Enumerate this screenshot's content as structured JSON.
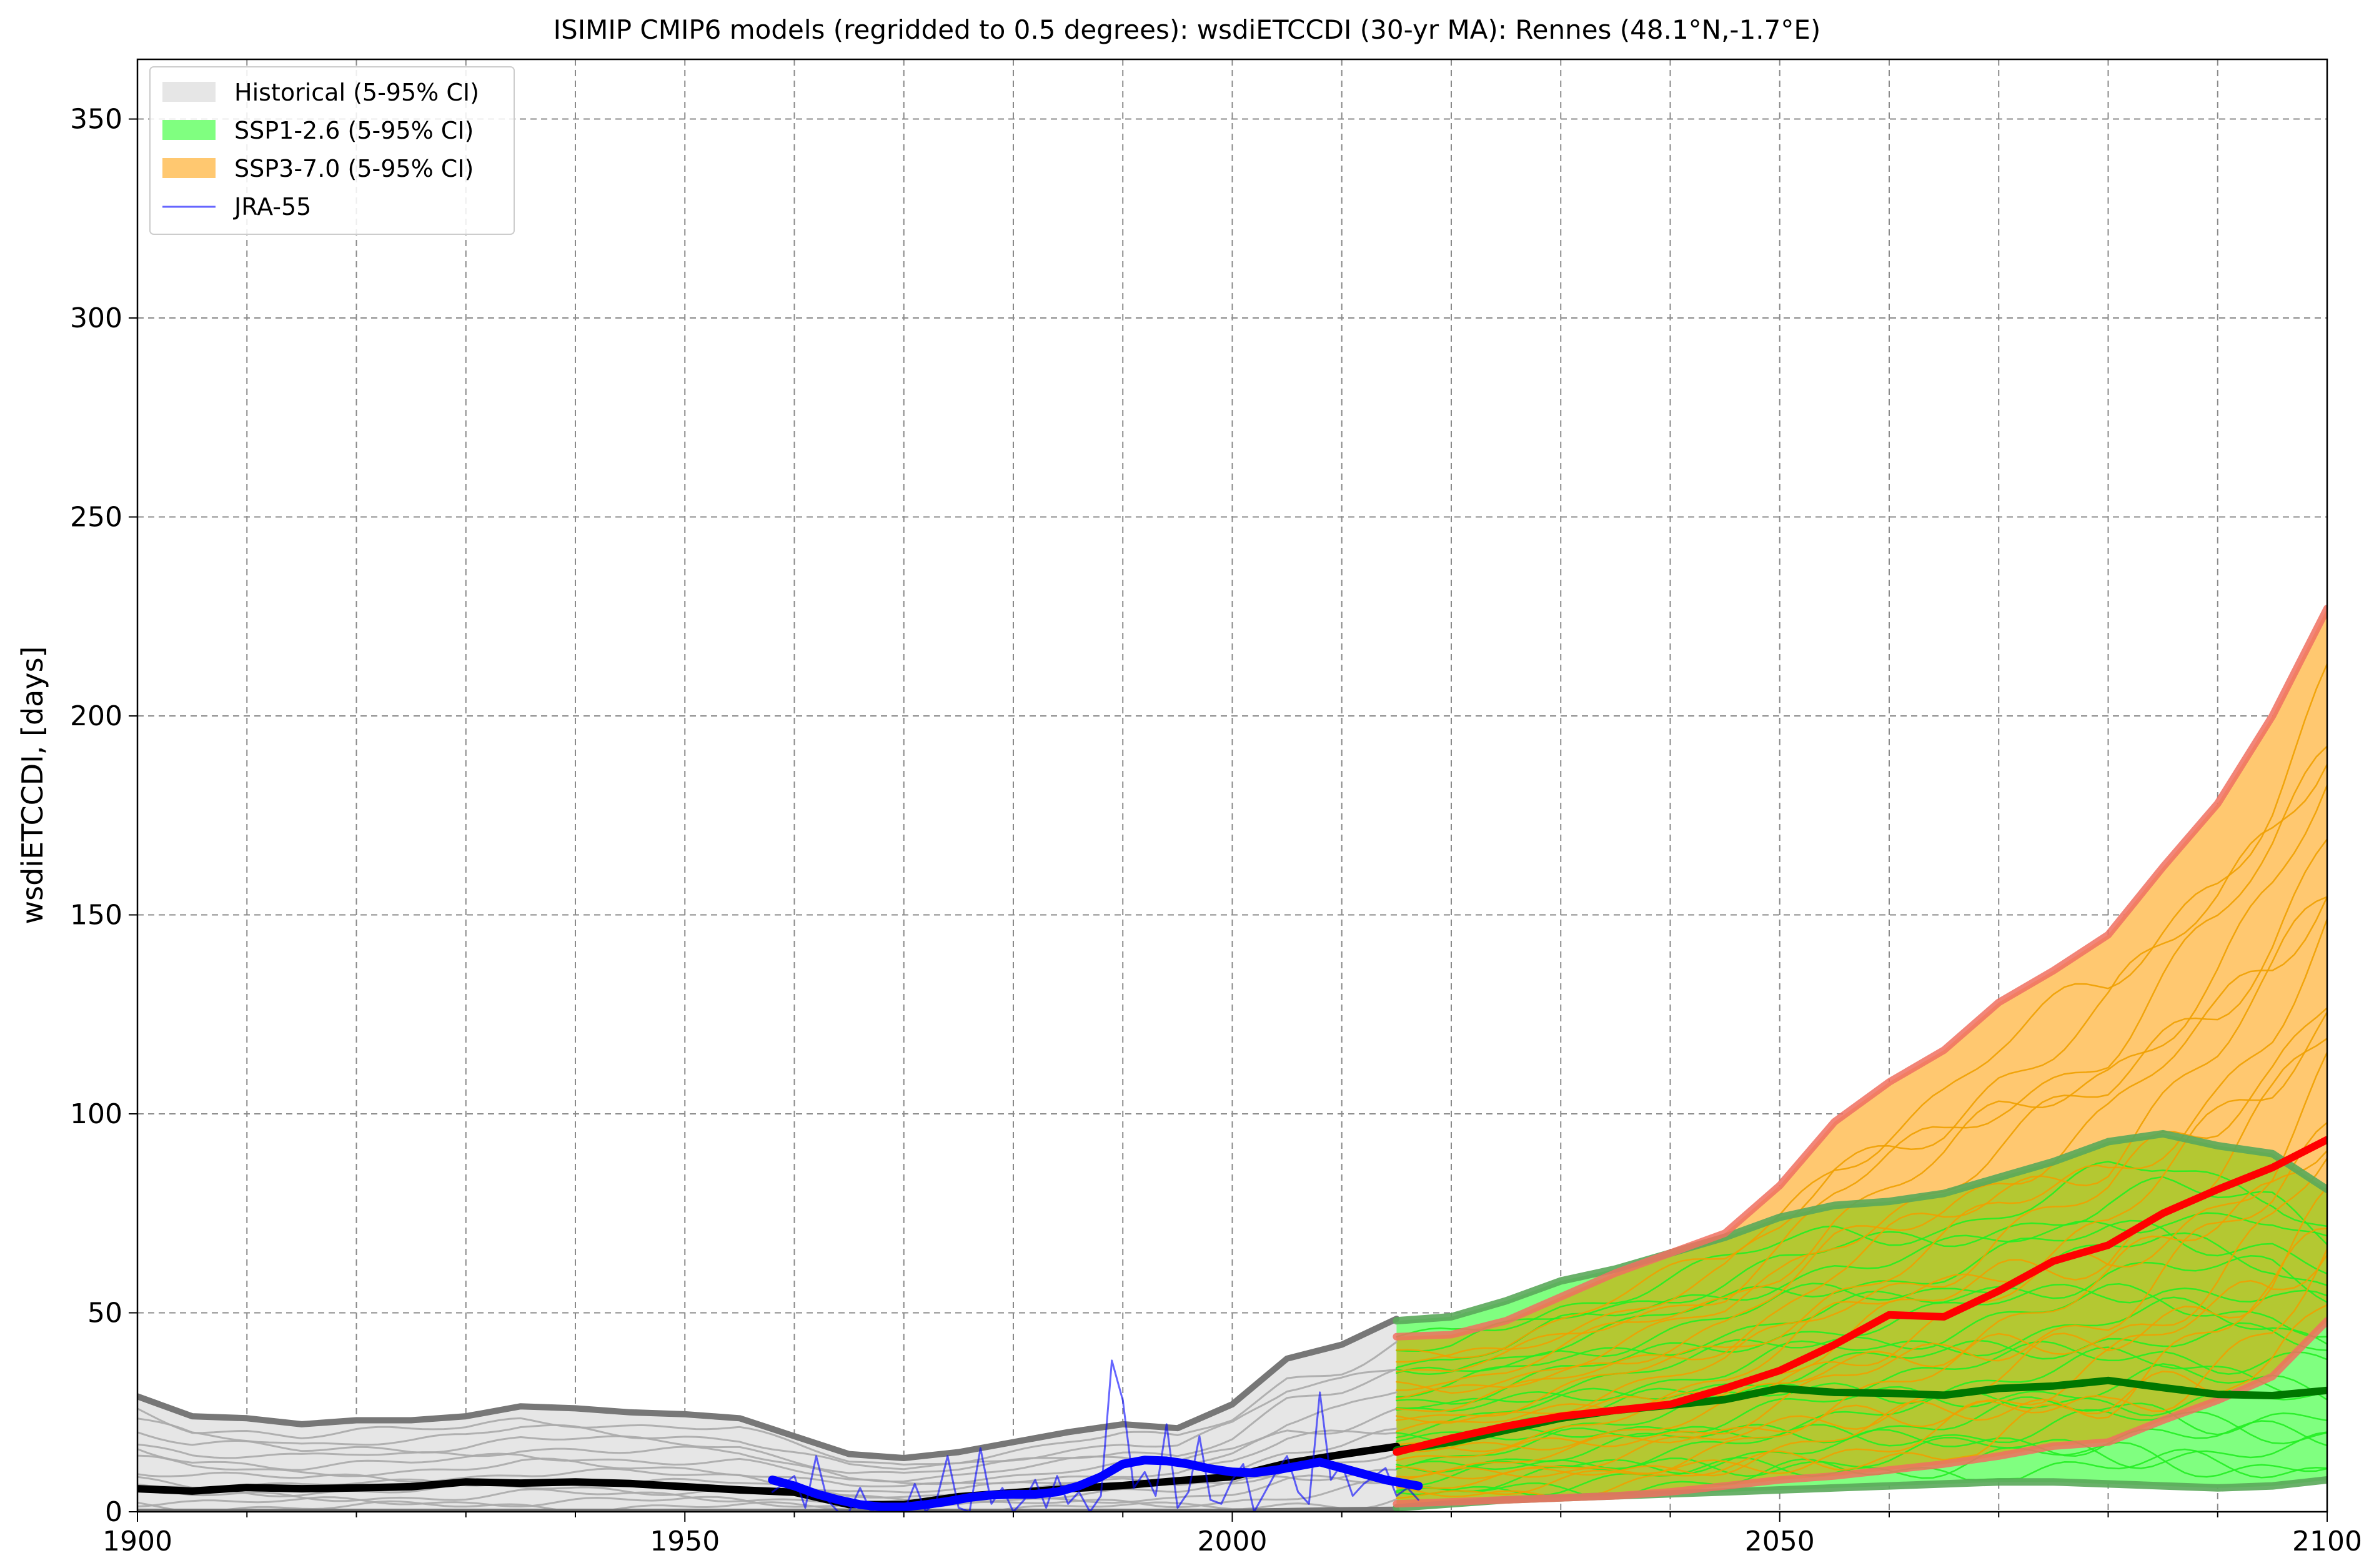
{
  "chart_data": {
    "type": "area",
    "title": "ISIMIP CMIP6 models (regridded to 0.5 degrees): wsdiETCCDI (30-yr MA): Rennes (48.1°N,-1.7°E)",
    "xlabel": "",
    "ylabel": "wsdiETCCDI, [days]",
    "xlim": [
      1900,
      2100
    ],
    "ylim": [
      0,
      365
    ],
    "x_ticks": [
      1900,
      1950,
      2000,
      2050,
      2100
    ],
    "y_ticks": [
      0,
      50,
      100,
      150,
      200,
      250,
      300,
      350
    ],
    "x_minor_step": 10,
    "grid": true,
    "legend_position": "top-left",
    "legend": [
      "Historical (5-95% CI)",
      "SSP1-2.6 (5-95% CI)",
      "SSP3-7.0 (5-95% CI)",
      "JRA-55"
    ],
    "colors": {
      "historical_band": "#e6e6e6",
      "historical_bound": "#777777",
      "historical_models": "#aaaaaa",
      "historical_median": "#000000",
      "ssp126_band": "#80ff80",
      "ssp126_bound": "#5aa85a",
      "ssp126_models": "#22ee22",
      "ssp126_median": "#007700",
      "ssp370_band": "#ffc870",
      "ssp370_bound": "#f07060",
      "ssp370_models": "#f0a000",
      "ssp370_median": "#ff0000",
      "overlap": "#b4c832",
      "jra55": "#0000ff"
    },
    "series": [
      {
        "name": "Historical (5-95% CI)",
        "kind": "band",
        "x": [
          1900,
          1905,
          1910,
          1915,
          1920,
          1925,
          1930,
          1935,
          1940,
          1945,
          1950,
          1955,
          1960,
          1965,
          1970,
          1975,
          1980,
          1985,
          1990,
          1995,
          2000,
          2005,
          2010,
          2015
        ],
        "lower": [
          0,
          0,
          0,
          0,
          0,
          0,
          0,
          0,
          0,
          0,
          0,
          0,
          0,
          0,
          0,
          0,
          0,
          0,
          0,
          0,
          0,
          0.2,
          0.4,
          0.5
        ],
        "upper": [
          29,
          24,
          23.5,
          22,
          23,
          23,
          24,
          26.5,
          26,
          25,
          24.5,
          23.5,
          19,
          14.5,
          13.5,
          15,
          17.5,
          20,
          22,
          21,
          27,
          38.5,
          42,
          48.5
        ]
      },
      {
        "name": "SSP1-2.6 (5-95% CI)",
        "kind": "band",
        "x": [
          2015,
          2020,
          2025,
          2030,
          2035,
          2040,
          2045,
          2050,
          2055,
          2060,
          2065,
          2070,
          2075,
          2080,
          2085,
          2090,
          2095,
          2100
        ],
        "lower": [
          1,
          2,
          3,
          3.5,
          4,
          4.5,
          5,
          5.5,
          6,
          6.5,
          7,
          7.5,
          7.5,
          7,
          6.5,
          6,
          6.5,
          8
        ],
        "upper": [
          48,
          49,
          53,
          58,
          61,
          65,
          69,
          74,
          77,
          78,
          80,
          84,
          88,
          93,
          95,
          92,
          90,
          81
        ]
      },
      {
        "name": "SSP3-7.0 (5-95% CI)",
        "kind": "band",
        "x": [
          2015,
          2020,
          2025,
          2030,
          2035,
          2040,
          2045,
          2050,
          2055,
          2060,
          2065,
          2070,
          2075,
          2080,
          2085,
          2090,
          2095,
          2100
        ],
        "lower": [
          2,
          2.5,
          3,
          3.5,
          4,
          5,
          6.5,
          8,
          9,
          10.5,
          12,
          14,
          16.5,
          17.5,
          23,
          28,
          34,
          48
        ],
        "upper": [
          44,
          44.5,
          48,
          54,
          60,
          65,
          70,
          82,
          98,
          108,
          116,
          128,
          136,
          145,
          162,
          178,
          200,
          227
        ]
      },
      {
        "name": "Historical median",
        "kind": "line",
        "x": [
          1900,
          1905,
          1910,
          1915,
          1920,
          1925,
          1930,
          1935,
          1940,
          1945,
          1950,
          1955,
          1960,
          1965,
          1970,
          1975,
          1980,
          1985,
          1990,
          1995,
          2000,
          2005,
          2010,
          2015
        ],
        "y": [
          5.8,
          5.2,
          6.1,
          5.8,
          6,
          6.3,
          7.5,
          7.2,
          7.5,
          7.1,
          6.3,
          5.5,
          4.9,
          1.8,
          1.8,
          3.8,
          4.8,
          5.8,
          6.6,
          7.8,
          8.8,
          12.2,
          14.4,
          16.4
        ]
      },
      {
        "name": "SSP1-2.6 median",
        "kind": "line",
        "x": [
          2015,
          2020,
          2025,
          2030,
          2035,
          2040,
          2045,
          2050,
          2055,
          2060,
          2065,
          2070,
          2075,
          2080,
          2085,
          2090,
          2095,
          2100
        ],
        "y": [
          15.5,
          17.5,
          20.5,
          23.5,
          25.5,
          26.8,
          28.2,
          31,
          30,
          29.8,
          29.3,
          31,
          31.6,
          33,
          31.2,
          29.5,
          29.2,
          30.5
        ]
      },
      {
        "name": "SSP3-7.0 median",
        "kind": "line",
        "x": [
          2015,
          2020,
          2025,
          2030,
          2035,
          2040,
          2045,
          2050,
          2055,
          2060,
          2065,
          2070,
          2075,
          2080,
          2085,
          2090,
          2095,
          2100
        ],
        "y": [
          15,
          18.5,
          21.5,
          24,
          25.5,
          27,
          31,
          35.5,
          42,
          49.5,
          49,
          55.5,
          63,
          67,
          75,
          81,
          86.5,
          93.5
        ]
      },
      {
        "name": "JRA-55",
        "kind": "line",
        "x": [
          1958,
          1960,
          1961,
          1962,
          1963,
          1964,
          1965,
          1966,
          1967,
          1968,
          1969,
          1970,
          1971,
          1972,
          1973,
          1974,
          1975,
          1976,
          1977,
          1978,
          1979,
          1980,
          1981,
          1982,
          1983,
          1984,
          1985,
          1986,
          1987,
          1988,
          1989,
          1990,
          1991,
          1992,
          1993,
          1994,
          1995,
          1996,
          1997,
          1998,
          1999,
          2000,
          2001,
          2002,
          2003,
          2004,
          2005,
          2006,
          2007,
          2008,
          2009,
          2010,
          2011,
          2012,
          2013,
          2014,
          2015,
          2016,
          2017
        ],
        "y": [
          5,
          9,
          1,
          14,
          3,
          0,
          0,
          6,
          0,
          2,
          0,
          0,
          7,
          0,
          3,
          14,
          1,
          0,
          16,
          2,
          6,
          0,
          3,
          8,
          1,
          9,
          2,
          5,
          0,
          4,
          38,
          28,
          6,
          10,
          4,
          22,
          1,
          5,
          19,
          3,
          2,
          8,
          12,
          0,
          5,
          10,
          14,
          5,
          2,
          30,
          8,
          12,
          4,
          7,
          9,
          11,
          4,
          6,
          3
        ]
      },
      {
        "name": "JRA-55 30-yr MA",
        "kind": "line",
        "x": [
          1958,
          1960,
          1962,
          1964,
          1966,
          1968,
          1970,
          1972,
          1974,
          1976,
          1978,
          1980,
          1982,
          1984,
          1986,
          1988,
          1990,
          1992,
          1994,
          1996,
          1998,
          2000,
          2002,
          2004,
          2006,
          2008,
          2010,
          2012,
          2014,
          2017
        ],
        "y": [
          8,
          6.5,
          4.5,
          3,
          1.8,
          1.2,
          1.2,
          1.8,
          2.6,
          3.6,
          4.2,
          4.4,
          4.4,
          5,
          6.5,
          8.8,
          12,
          13,
          12.8,
          12,
          10.8,
          10,
          9.8,
          10.5,
          11.5,
          12.5,
          11,
          9.5,
          8,
          6.5
        ]
      }
    ]
  }
}
